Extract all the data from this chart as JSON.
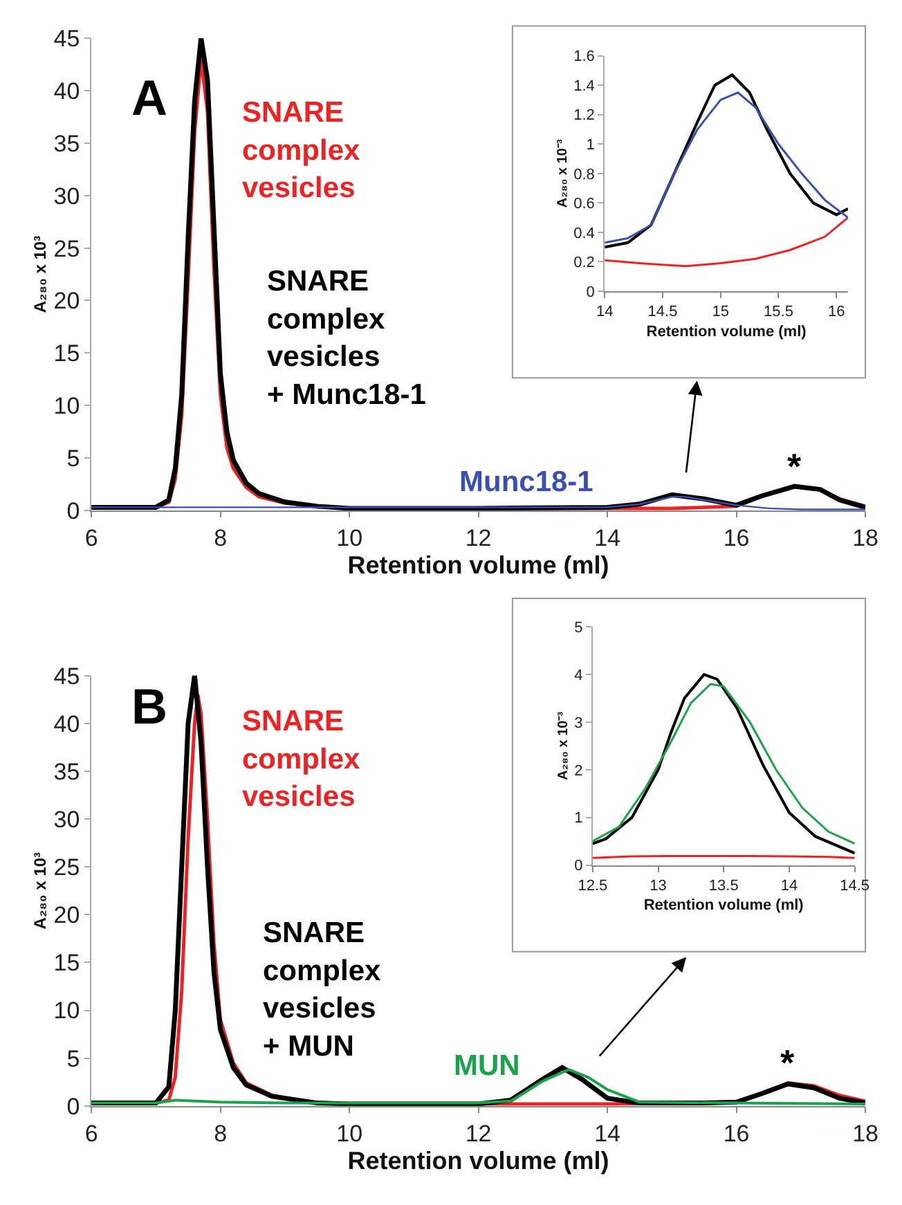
{
  "chart_data": [
    {
      "type": "line",
      "xlabel": "Retention volume (ml)",
      "ylabel": "A₂₈₀ x 10³",
      "xlim": [
        6,
        18
      ],
      "xticks": [
        6,
        8,
        10,
        12,
        14,
        16,
        18
      ],
      "ylim": [
        0,
        45
      ],
      "yticks": [
        0,
        5,
        10,
        15,
        20,
        25,
        30,
        35,
        40,
        45
      ],
      "annotations": [
        "A",
        {
          "text": "*",
          "x": 16.9,
          "y": 2.3
        }
      ],
      "series": [
        {
          "name": "SNARE\ncomplex\nvesicles",
          "color": "#ee2222",
          "x": [
            6,
            6.5,
            7.0,
            7.2,
            7.3,
            7.4,
            7.5,
            7.6,
            7.7,
            7.8,
            7.9,
            8.0,
            8.1,
            8.2,
            8.4,
            8.6,
            9.0,
            9.5,
            10,
            12,
            14,
            15,
            16,
            16.4,
            16.9,
            17.3,
            17.6,
            18
          ],
          "values": [
            0.3,
            0.3,
            0.3,
            0.8,
            3,
            9,
            22,
            36,
            43,
            38,
            23,
            11,
            6,
            4,
            2.2,
            1.3,
            0.7,
            0.4,
            0.2,
            0.2,
            0.2,
            0.2,
            0.4,
            1.4,
            2.3,
            2,
            1.1,
            0.4
          ]
        },
        {
          "name": "SNARE\ncomplex\nvesicles\n+ Munc18-1",
          "color": "#000000",
          "x": [
            6,
            6.5,
            7.0,
            7.2,
            7.3,
            7.4,
            7.5,
            7.6,
            7.7,
            7.8,
            7.9,
            8.0,
            8.1,
            8.2,
            8.4,
            8.6,
            9.0,
            9.5,
            10,
            12,
            14,
            14.5,
            15,
            15.5,
            16,
            16.4,
            16.9,
            17.3,
            17.6,
            18
          ],
          "values": [
            0.3,
            0.3,
            0.3,
            1,
            4,
            11,
            26,
            39,
            45,
            41,
            27,
            13,
            7.5,
            4.8,
            2.6,
            1.6,
            0.8,
            0.4,
            0.2,
            0.2,
            0.3,
            0.6,
            1.5,
            1.1,
            0.5,
            1.4,
            2.3,
            2,
            1,
            0.3
          ]
        },
        {
          "name": "Munc18-1",
          "color": "#3a4fb0",
          "x": [
            6,
            8,
            10,
            12,
            14,
            14.5,
            15,
            15.2,
            15.5,
            16,
            16.5,
            17,
            18
          ],
          "values": [
            0.3,
            0.3,
            0.3,
            0.3,
            0.3,
            0.6,
            1.3,
            1.3,
            1.0,
            0.5,
            0.2,
            0.1,
            0.1
          ]
        }
      ]
    },
    {
      "type": "line",
      "xlabel": "Retention volume (ml)",
      "ylabel": "A₂₈₀ x 10⁻³",
      "xlim": [
        14,
        16.1
      ],
      "xticks": [
        14,
        14.5,
        15,
        15.5,
        16
      ],
      "ylim": [
        0,
        1.6
      ],
      "yticks": [
        0,
        0.2,
        0.4,
        0.6,
        0.8,
        1,
        1.2,
        1.4,
        1.6
      ],
      "series": [
        {
          "color": "#ee2222",
          "x": [
            14,
            14.3,
            14.5,
            14.7,
            15,
            15.3,
            15.6,
            15.9,
            16.1
          ],
          "values": [
            0.21,
            0.19,
            0.18,
            0.17,
            0.19,
            0.22,
            0.28,
            0.37,
            0.5
          ]
        },
        {
          "color": "#000000",
          "x": [
            14,
            14.2,
            14.4,
            14.6,
            14.8,
            14.95,
            15.1,
            15.25,
            15.4,
            15.6,
            15.8,
            16.0,
            16.1
          ],
          "values": [
            0.3,
            0.33,
            0.45,
            0.8,
            1.15,
            1.4,
            1.47,
            1.35,
            1.1,
            0.8,
            0.6,
            0.52,
            0.56
          ]
        },
        {
          "color": "#3a4fb0",
          "x": [
            14,
            14.2,
            14.4,
            14.6,
            14.8,
            15.0,
            15.15,
            15.3,
            15.5,
            15.7,
            15.9,
            16.1
          ],
          "values": [
            0.33,
            0.36,
            0.45,
            0.8,
            1.1,
            1.3,
            1.35,
            1.25,
            1.0,
            0.8,
            0.62,
            0.5
          ]
        }
      ]
    },
    {
      "type": "line",
      "xlabel": "Retention volume (ml)",
      "ylabel": "A₂₈₀ x 10³",
      "xlim": [
        6,
        18
      ],
      "xticks": [
        6,
        8,
        10,
        12,
        14,
        16,
        18
      ],
      "ylim": [
        0,
        45
      ],
      "yticks": [
        0,
        5,
        10,
        15,
        20,
        25,
        30,
        35,
        40,
        45
      ],
      "annotations": [
        "B",
        {
          "text": "*",
          "x": 16.8,
          "y": 2.4
        }
      ],
      "series": [
        {
          "name": "SNARE\ncomplex\nvesicles",
          "color": "#ee2222",
          "x": [
            6,
            6.5,
            7.0,
            7.2,
            7.3,
            7.4,
            7.5,
            7.6,
            7.65,
            7.7,
            7.8,
            7.9,
            8.0,
            8.2,
            8.4,
            8.8,
            9.5,
            10,
            12,
            14,
            16,
            16.4,
            16.8,
            17.2,
            17.6,
            18
          ],
          "values": [
            0.3,
            0.3,
            0.3,
            0.6,
            3,
            12,
            28,
            40,
            43,
            41,
            30,
            17,
            9,
            4.5,
            2.4,
            1.1,
            0.3,
            0.2,
            0.2,
            0.2,
            0.4,
            1.3,
            2.4,
            2.1,
            1.1,
            0.5
          ]
        },
        {
          "name": "SNARE\ncomplex\nvesicles\n+ MUN",
          "color": "#000000",
          "x": [
            6,
            6.5,
            7.0,
            7.2,
            7.3,
            7.4,
            7.5,
            7.6,
            7.7,
            7.8,
            7.9,
            8.0,
            8.2,
            8.4,
            8.8,
            9.5,
            10,
            12,
            12.5,
            13,
            13.3,
            13.6,
            14,
            14.5,
            15.5,
            16,
            16.4,
            16.8,
            17.2,
            17.6,
            18
          ],
          "values": [
            0.3,
            0.3,
            0.3,
            2,
            10,
            25,
            40,
            45,
            38,
            25,
            14,
            8,
            4,
            2.2,
            1,
            0.3,
            0.2,
            0.2,
            0.6,
            2.8,
            4,
            2.8,
            0.8,
            0.3,
            0.3,
            0.4,
            1.3,
            2.3,
            1.9,
            0.8,
            0.3
          ]
        },
        {
          "name": "MUN",
          "color": "#1aa34a",
          "x": [
            6,
            7.0,
            7.3,
            8,
            9,
            12,
            12.5,
            13,
            13.4,
            13.7,
            14,
            14.5,
            16,
            18
          ],
          "values": [
            0.3,
            0.3,
            0.6,
            0.4,
            0.3,
            0.3,
            0.5,
            2.6,
            3.8,
            3,
            1.7,
            0.4,
            0.3,
            0.2
          ]
        }
      ]
    },
    {
      "type": "line",
      "xlabel": "Retention volume (ml)",
      "ylabel": "A₂₈₀ x 10⁻³",
      "xlim": [
        12.5,
        14.5
      ],
      "xticks": [
        12.5,
        13,
        13.5,
        14,
        14.5
      ],
      "ylim": [
        0,
        5
      ],
      "yticks": [
        0,
        1,
        2,
        3,
        4,
        5
      ],
      "series": [
        {
          "color": "#ee2222",
          "x": [
            12.5,
            12.8,
            13.1,
            13.4,
            13.7,
            14,
            14.3,
            14.5
          ],
          "values": [
            0.15,
            0.18,
            0.19,
            0.19,
            0.19,
            0.18,
            0.17,
            0.15
          ]
        },
        {
          "color": "#000000",
          "x": [
            12.5,
            12.6,
            12.8,
            13.0,
            13.1,
            13.2,
            13.35,
            13.45,
            13.6,
            13.8,
            14.0,
            14.2,
            14.5
          ],
          "values": [
            0.45,
            0.55,
            1.0,
            2.0,
            2.8,
            3.5,
            4.0,
            3.9,
            3.3,
            2.1,
            1.1,
            0.6,
            0.25
          ]
        },
        {
          "color": "#1aa34a",
          "x": [
            12.5,
            12.7,
            12.9,
            13.1,
            13.25,
            13.4,
            13.5,
            13.7,
            13.9,
            14.1,
            14.3,
            14.5
          ],
          "values": [
            0.5,
            0.8,
            1.6,
            2.6,
            3.4,
            3.8,
            3.75,
            3.0,
            2.0,
            1.2,
            0.7,
            0.45
          ]
        }
      ]
    }
  ]
}
